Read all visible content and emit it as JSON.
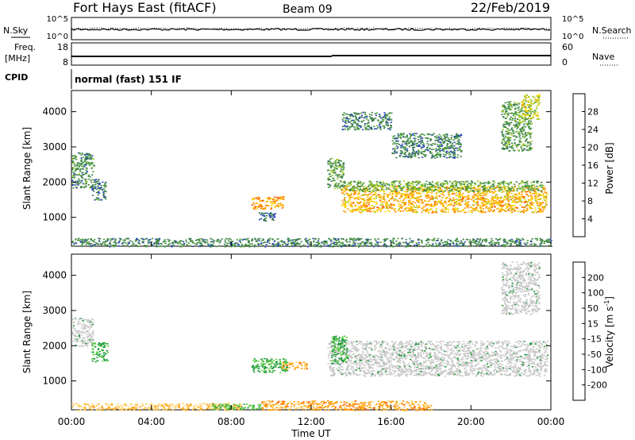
{
  "header": {
    "title": "Fort Hays East (fitACF)",
    "beam": "Beam 09",
    "date": "22/Feb/2019"
  },
  "strip_noise": {
    "left_label": "N.Sky",
    "right_label": "N.Search",
    "left_ticks": [
      "10^5",
      "10^0"
    ],
    "right_ticks": [
      "10^5",
      "10^0"
    ]
  },
  "strip_freq": {
    "left_label_1": "Freq.",
    "left_label_2": "[MHz]",
    "right_label": "Nave",
    "left_ticks": [
      "18",
      "8"
    ],
    "right_ticks": [
      "60",
      "0"
    ]
  },
  "cpid": {
    "label": "CPID",
    "value": "normal (fast) 151 IF"
  },
  "colors": {
    "power_scale": [
      "#0a1cf0",
      "#2a46b8",
      "#3f7e4e",
      "#4a9a40",
      "#9cc820",
      "#ffd400",
      "#ff9900",
      "#ff5500",
      "#ff1a00"
    ],
    "velocity_scale": [
      "#e60000",
      "#ff5a00",
      "#ff9a00",
      "#ffd060",
      "#c8c8c8",
      "#5ad040",
      "#1f9a3a",
      "#2a6ad0",
      "#1a22c8"
    ],
    "ground_scatter": "#c8c8c8"
  },
  "chart_data": [
    {
      "type": "heatmap",
      "panel": "power",
      "ylabel": "Slant Range [km]",
      "yticks": [
        "4000",
        "3000",
        "2000",
        "1000"
      ],
      "ylim": [
        180,
        4600
      ],
      "xticks": [
        "00:00",
        "04:00",
        "08:00",
        "12:00",
        "16:00",
        "20:00",
        "00:00"
      ],
      "xlim": [
        0,
        24
      ],
      "colorbar": {
        "label": "Power [dB]",
        "ticks": [
          "28",
          "24",
          "20",
          "16",
          "12",
          "8",
          "4"
        ],
        "range": [
          0,
          32
        ]
      },
      "scatter_regions": [
        {
          "t0": 0.0,
          "t1": 1.1,
          "r0": 1850,
          "r1": 2850,
          "level": 10
        },
        {
          "t0": 1.0,
          "t1": 1.7,
          "r0": 1500,
          "r1": 2100,
          "level": 7
        },
        {
          "t0": 9.0,
          "t1": 10.6,
          "r0": 1250,
          "r1": 1600,
          "level": 24
        },
        {
          "t0": 9.3,
          "t1": 10.2,
          "r0": 900,
          "r1": 1150,
          "level": 6
        },
        {
          "t0": 12.8,
          "t1": 13.6,
          "r0": 1800,
          "r1": 2700,
          "level": 11
        },
        {
          "t0": 13.5,
          "t1": 23.8,
          "r0": 1150,
          "r1": 1900,
          "level": 22
        },
        {
          "t0": 13.6,
          "t1": 23.6,
          "r0": 1750,
          "r1": 2050,
          "level": 13
        },
        {
          "t0": 13.5,
          "t1": 16.0,
          "r0": 3500,
          "r1": 4000,
          "level": 8
        },
        {
          "t0": 16.0,
          "t1": 19.5,
          "r0": 2700,
          "r1": 3400,
          "level": 9
        },
        {
          "t0": 21.5,
          "t1": 23.0,
          "r0": 2900,
          "r1": 4300,
          "level": 11
        },
        {
          "t0": 22.5,
          "t1": 23.4,
          "r0": 3800,
          "r1": 4500,
          "level": 18
        },
        {
          "t0": 0.0,
          "t1": 24.0,
          "r0": 180,
          "r1": 420,
          "level": 9
        }
      ]
    },
    {
      "type": "heatmap",
      "panel": "velocity",
      "ylabel": "Slant Range [km]",
      "xlabel": "Time UT",
      "yticks": [
        "4000",
        "3000",
        "2000",
        "1000"
      ],
      "ylim": [
        180,
        4600
      ],
      "xticks": [
        "00:00",
        "04:00",
        "08:00",
        "12:00",
        "16:00",
        "20:00",
        "00:00"
      ],
      "xlim": [
        0,
        24
      ],
      "colorbar": {
        "label": "Velocity [m s",
        "label_sup": "-1",
        "label_end": "]",
        "ticks": [
          "200",
          "100",
          "50",
          "15",
          "-15",
          "-50",
          "-100",
          "-200"
        ]
      },
      "scatter_regions": [
        {
          "t0": 0.0,
          "t1": 1.1,
          "r0": 2000,
          "r1": 2800,
          "class": "ground"
        },
        {
          "t0": 1.0,
          "t1": 1.8,
          "r0": 1550,
          "r1": 2100,
          "class": "v50"
        },
        {
          "t0": 9.0,
          "t1": 10.8,
          "r0": 1250,
          "r1": 1650,
          "class": "v50"
        },
        {
          "t0": 10.5,
          "t1": 11.8,
          "r0": 1350,
          "r1": 1550,
          "class": "vneg50"
        },
        {
          "t0": 12.8,
          "t1": 23.8,
          "r0": 1150,
          "r1": 2150,
          "class": "ground"
        },
        {
          "t0": 13.0,
          "t1": 13.8,
          "r0": 1500,
          "r1": 2300,
          "class": "v50"
        },
        {
          "t0": 21.5,
          "t1": 23.4,
          "r0": 2900,
          "r1": 4400,
          "class": "ground"
        },
        {
          "t0": 0.0,
          "t1": 8.5,
          "r0": 180,
          "r1": 380,
          "class": "vneg15"
        },
        {
          "t0": 7.0,
          "t1": 9.5,
          "r0": 200,
          "r1": 360,
          "class": "v15"
        },
        {
          "t0": 9.5,
          "t1": 18.0,
          "r0": 180,
          "r1": 450,
          "class": "vneg50"
        }
      ]
    }
  ]
}
